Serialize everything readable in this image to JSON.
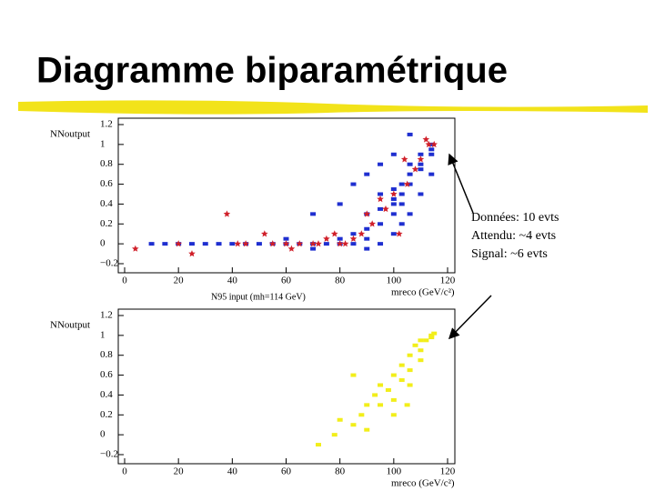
{
  "slide_title": "Diagramme biparamétrique",
  "annotation": [
    "Données: 10 evts",
    "Attendu: ~4 evts",
    "Signal:   ~6 evts"
  ],
  "chart_data": [
    {
      "type": "scatter",
      "subtitle": "N95 input (mh=114 GeV)",
      "x_label": "mreco (GeV/c²)",
      "y_label": "NNoutput",
      "xlim": [
        0,
        120
      ],
      "ylim": [
        -0.2,
        1.2
      ],
      "xticks": [
        0,
        20,
        40,
        60,
        80,
        100,
        120
      ],
      "yticks": [
        {
          "value": -0.2,
          "label": "−0.2"
        },
        0,
        0.2,
        0.4,
        0.6,
        0.8,
        1,
        1.2
      ],
      "series": [
        {
          "color": "#1f2fd0",
          "marker": "square",
          "x": [
            10,
            15,
            20,
            25,
            30,
            35,
            40,
            45,
            50,
            55,
            60,
            65,
            70,
            75,
            80,
            85,
            60,
            70,
            80,
            85,
            90,
            90,
            90,
            95,
            95,
            95,
            100,
            100,
            100,
            100,
            103,
            103,
            103,
            106,
            106,
            106,
            110,
            110,
            110,
            114,
            114,
            114,
            90,
            95,
            100,
            103,
            106,
            110,
            114,
            70,
            80,
            85,
            90,
            95,
            100,
            106
          ],
          "values": [
            0,
            0,
            0,
            0,
            0,
            0,
            0,
            0,
            0,
            0,
            0,
            0,
            0,
            0,
            0,
            0,
            0.05,
            -0.05,
            0.05,
            0.1,
            0.05,
            0.15,
            0.3,
            0.2,
            0.35,
            0.5,
            0.3,
            0.4,
            0.45,
            0.55,
            0.4,
            0.5,
            0.6,
            0.6,
            0.7,
            0.8,
            0.8,
            0.9,
            0.75,
            0.9,
            1.0,
            0.95,
            -0.05,
            0,
            0.1,
            0.2,
            0.3,
            0.5,
            0.7,
            0.3,
            0.4,
            0.6,
            0.7,
            0.8,
            0.9,
            1.1
          ]
        },
        {
          "color": "#d0202a",
          "marker": "star",
          "x": [
            4,
            20,
            25,
            38,
            42,
            45,
            52,
            55,
            60,
            62,
            65,
            70,
            72,
            75,
            78,
            80,
            82,
            85,
            88,
            90,
            92,
            95,
            97,
            100,
            102,
            104,
            105,
            108,
            110,
            112,
            113,
            115
          ],
          "values": [
            -0.05,
            0,
            -0.1,
            0.3,
            0,
            0,
            0.1,
            0,
            0,
            -0.05,
            0,
            0,
            0,
            0.05,
            0.1,
            0,
            0,
            0.05,
            0.1,
            0.3,
            0.2,
            0.45,
            0.35,
            0.5,
            0.1,
            0.85,
            0.6,
            0.75,
            0.85,
            1.05,
            1.0,
            1.0
          ]
        }
      ]
    },
    {
      "type": "scatter",
      "x_label": "mreco (GeV/c²)",
      "y_label": "NNoutput",
      "xlim": [
        0,
        120
      ],
      "ylim": [
        -0.2,
        1.2
      ],
      "xticks": [
        0,
        20,
        40,
        60,
        80,
        100,
        120
      ],
      "yticks": [
        {
          "value": -0.2,
          "label": "−0.2"
        },
        0,
        0.2,
        0.4,
        0.6,
        0.8,
        1,
        1.2
      ],
      "series": [
        {
          "color": "#f2ee1a",
          "marker": "square",
          "x": [
            72,
            78,
            80,
            85,
            88,
            90,
            90,
            93,
            95,
            95,
            98,
            100,
            100,
            103,
            103,
            106,
            106,
            108,
            110,
            110,
            112,
            114,
            114,
            115,
            110,
            106,
            100,
            85,
            105
          ],
          "values": [
            -0.1,
            0,
            0.15,
            0.1,
            0.2,
            0.3,
            0.05,
            0.4,
            0.3,
            0.5,
            0.45,
            0.6,
            0.35,
            0.7,
            0.55,
            0.8,
            0.65,
            0.9,
            0.85,
            0.95,
            0.95,
            1.0,
            0.98,
            1.02,
            0.75,
            0.5,
            0.2,
            0.6,
            0.3
          ]
        }
      ]
    }
  ]
}
